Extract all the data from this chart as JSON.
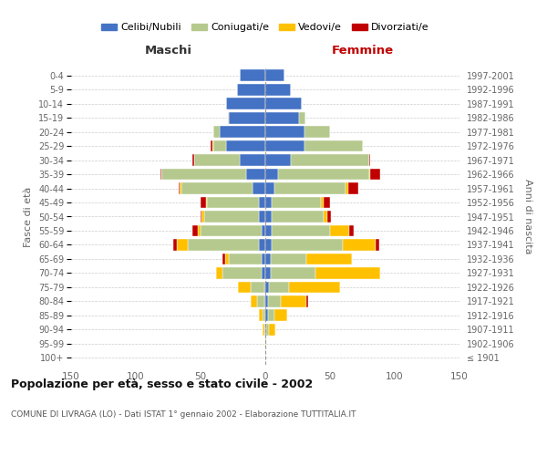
{
  "age_groups": [
    "100+",
    "95-99",
    "90-94",
    "85-89",
    "80-84",
    "75-79",
    "70-74",
    "65-69",
    "60-64",
    "55-59",
    "50-54",
    "45-49",
    "40-44",
    "35-39",
    "30-34",
    "25-29",
    "20-24",
    "15-19",
    "10-14",
    "5-9",
    "0-4"
  ],
  "birth_years": [
    "≤ 1901",
    "1902-1906",
    "1907-1911",
    "1912-1916",
    "1917-1921",
    "1922-1926",
    "1927-1931",
    "1932-1936",
    "1937-1941",
    "1942-1946",
    "1947-1951",
    "1952-1956",
    "1957-1961",
    "1962-1966",
    "1967-1971",
    "1972-1976",
    "1977-1981",
    "1982-1986",
    "1987-1991",
    "1992-1996",
    "1997-2001"
  ],
  "maschi_celibi": [
    0,
    0,
    0,
    0,
    1,
    1,
    3,
    3,
    5,
    3,
    5,
    5,
    10,
    15,
    20,
    30,
    35,
    28,
    30,
    22,
    20
  ],
  "maschi_coniugati": [
    0,
    0,
    1,
    2,
    5,
    10,
    30,
    25,
    55,
    47,
    42,
    40,
    55,
    65,
    35,
    10,
    5,
    1,
    0,
    0,
    0
  ],
  "maschi_vedovi": [
    0,
    0,
    1,
    3,
    5,
    10,
    5,
    3,
    8,
    2,
    2,
    1,
    1,
    0,
    0,
    1,
    0,
    0,
    0,
    0,
    0
  ],
  "maschi_divorziati": [
    0,
    0,
    0,
    0,
    0,
    0,
    0,
    2,
    3,
    4,
    1,
    4,
    1,
    1,
    1,
    1,
    0,
    0,
    0,
    0,
    0
  ],
  "femmine_nubili": [
    0,
    0,
    1,
    2,
    2,
    3,
    4,
    4,
    5,
    5,
    5,
    5,
    7,
    10,
    20,
    30,
    30,
    26,
    28,
    20,
    15
  ],
  "femmine_coniugate": [
    0,
    0,
    2,
    5,
    10,
    15,
    35,
    28,
    55,
    45,
    40,
    38,
    55,
    70,
    60,
    45,
    20,
    5,
    0,
    0,
    0
  ],
  "femmine_vedove": [
    0,
    1,
    5,
    10,
    20,
    40,
    50,
    35,
    25,
    15,
    3,
    2,
    2,
    1,
    0,
    0,
    0,
    0,
    0,
    0,
    0
  ],
  "femmine_divorziate": [
    0,
    0,
    0,
    0,
    1,
    0,
    0,
    0,
    3,
    3,
    3,
    5,
    8,
    8,
    1,
    0,
    0,
    0,
    0,
    0,
    0
  ],
  "color_celibi": "#4472c4",
  "color_coniugati": "#b5c98e",
  "color_vedovi": "#ffc000",
  "color_divorziati": "#c00000",
  "xlim": 150,
  "title": "Popolazione per età, sesso e stato civile - 2002",
  "subtitle": "COMUNE DI LIVRAGA (LO) - Dati ISTAT 1° gennaio 2002 - Elaborazione TUTTITALIA.IT",
  "label_maschi": "Maschi",
  "label_femmine": "Femmine",
  "label_fasce": "Fasce di età",
  "label_anni": "Anni di nascita",
  "legend_labels": [
    "Celibi/Nubili",
    "Coniugati/e",
    "Vedovi/e",
    "Divorziati/e"
  ],
  "bg": "#ffffff",
  "grid_color": "#cccccc"
}
